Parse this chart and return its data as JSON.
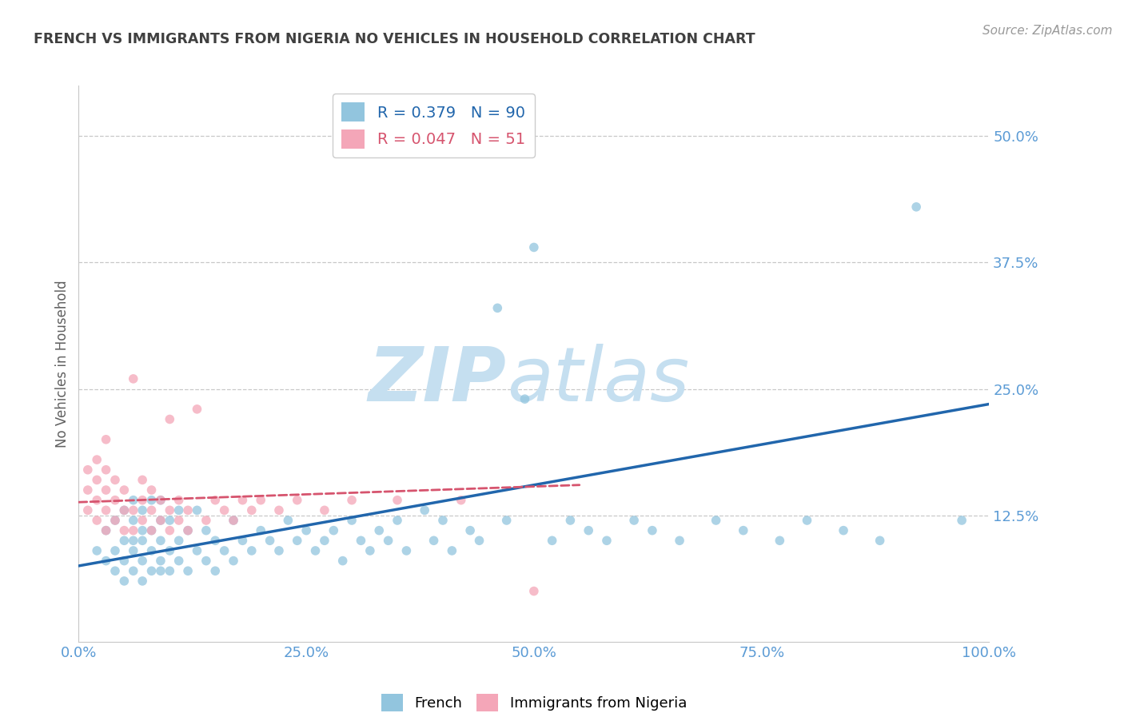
{
  "title": "FRENCH VS IMMIGRANTS FROM NIGERIA NO VEHICLES IN HOUSEHOLD CORRELATION CHART",
  "source": "Source: ZipAtlas.com",
  "ylabel": "No Vehicles in Household",
  "legend_label1": "French",
  "legend_label2": "Immigrants from Nigeria",
  "R1": 0.379,
  "N1": 90,
  "R2": 0.047,
  "N2": 51,
  "xlim": [
    0.0,
    1.0
  ],
  "ylim": [
    0.0,
    0.55
  ],
  "xticks": [
    0.0,
    0.25,
    0.5,
    0.75,
    1.0
  ],
  "xticklabels": [
    "0.0%",
    "25.0%",
    "50.0%",
    "75.0%",
    "100.0%"
  ],
  "yticks": [
    0.0,
    0.125,
    0.25,
    0.375,
    0.5
  ],
  "yticklabels": [
    "",
    "12.5%",
    "25.0%",
    "37.5%",
    "50.0%"
  ],
  "color_blue": "#92c5de",
  "color_blue_dark": "#2166ac",
  "color_pink": "#f4a6b8",
  "color_pink_dark": "#d6546e",
  "watermark_zip": "ZIP",
  "watermark_atlas": "atlas",
  "blue_scatter_x": [
    0.02,
    0.03,
    0.03,
    0.04,
    0.04,
    0.04,
    0.05,
    0.05,
    0.05,
    0.05,
    0.06,
    0.06,
    0.06,
    0.06,
    0.06,
    0.07,
    0.07,
    0.07,
    0.07,
    0.07,
    0.08,
    0.08,
    0.08,
    0.08,
    0.09,
    0.09,
    0.09,
    0.09,
    0.09,
    0.1,
    0.1,
    0.1,
    0.11,
    0.11,
    0.11,
    0.12,
    0.12,
    0.13,
    0.13,
    0.14,
    0.14,
    0.15,
    0.15,
    0.16,
    0.17,
    0.17,
    0.18,
    0.19,
    0.2,
    0.21,
    0.22,
    0.23,
    0.24,
    0.25,
    0.26,
    0.27,
    0.28,
    0.29,
    0.3,
    0.31,
    0.32,
    0.33,
    0.34,
    0.35,
    0.36,
    0.38,
    0.39,
    0.4,
    0.41,
    0.43,
    0.44,
    0.46,
    0.47,
    0.49,
    0.5,
    0.52,
    0.54,
    0.56,
    0.58,
    0.61,
    0.63,
    0.66,
    0.7,
    0.73,
    0.77,
    0.8,
    0.84,
    0.88,
    0.92,
    0.97
  ],
  "blue_scatter_y": [
    0.09,
    0.08,
    0.11,
    0.07,
    0.09,
    0.12,
    0.06,
    0.08,
    0.1,
    0.13,
    0.07,
    0.09,
    0.1,
    0.12,
    0.14,
    0.06,
    0.08,
    0.1,
    0.11,
    0.13,
    0.07,
    0.09,
    0.11,
    0.14,
    0.07,
    0.08,
    0.1,
    0.12,
    0.14,
    0.07,
    0.09,
    0.12,
    0.08,
    0.1,
    0.13,
    0.07,
    0.11,
    0.09,
    0.13,
    0.08,
    0.11,
    0.07,
    0.1,
    0.09,
    0.08,
    0.12,
    0.1,
    0.09,
    0.11,
    0.1,
    0.09,
    0.12,
    0.1,
    0.11,
    0.09,
    0.1,
    0.11,
    0.08,
    0.12,
    0.1,
    0.09,
    0.11,
    0.1,
    0.12,
    0.09,
    0.13,
    0.1,
    0.12,
    0.09,
    0.11,
    0.1,
    0.33,
    0.12,
    0.24,
    0.39,
    0.1,
    0.12,
    0.11,
    0.1,
    0.12,
    0.11,
    0.1,
    0.12,
    0.11,
    0.1,
    0.12,
    0.11,
    0.1,
    0.43,
    0.12
  ],
  "pink_scatter_x": [
    0.01,
    0.01,
    0.01,
    0.02,
    0.02,
    0.02,
    0.02,
    0.03,
    0.03,
    0.03,
    0.03,
    0.03,
    0.04,
    0.04,
    0.04,
    0.05,
    0.05,
    0.05,
    0.06,
    0.06,
    0.06,
    0.07,
    0.07,
    0.07,
    0.08,
    0.08,
    0.08,
    0.09,
    0.09,
    0.1,
    0.1,
    0.1,
    0.11,
    0.11,
    0.12,
    0.12,
    0.13,
    0.14,
    0.15,
    0.16,
    0.17,
    0.18,
    0.19,
    0.2,
    0.22,
    0.24,
    0.27,
    0.3,
    0.35,
    0.42,
    0.5
  ],
  "pink_scatter_y": [
    0.13,
    0.15,
    0.17,
    0.12,
    0.14,
    0.16,
    0.18,
    0.11,
    0.13,
    0.15,
    0.17,
    0.2,
    0.12,
    0.14,
    0.16,
    0.11,
    0.13,
    0.15,
    0.11,
    0.13,
    0.26,
    0.12,
    0.14,
    0.16,
    0.11,
    0.13,
    0.15,
    0.12,
    0.14,
    0.11,
    0.13,
    0.22,
    0.12,
    0.14,
    0.11,
    0.13,
    0.23,
    0.12,
    0.14,
    0.13,
    0.12,
    0.14,
    0.13,
    0.14,
    0.13,
    0.14,
    0.13,
    0.14,
    0.14,
    0.14,
    0.05
  ],
  "blue_line_x": [
    0.0,
    1.0
  ],
  "blue_line_y": [
    0.075,
    0.235
  ],
  "pink_line_x": [
    0.0,
    0.55
  ],
  "pink_line_y": [
    0.138,
    0.155
  ],
  "background_color": "#ffffff",
  "grid_color": "#c8c8c8",
  "title_color": "#404040",
  "axis_label_color": "#606060",
  "tick_color": "#5b9bd5",
  "watermark_color_zip": "#c5dff0",
  "watermark_color_atlas": "#c5dff0",
  "dot_size": 70
}
